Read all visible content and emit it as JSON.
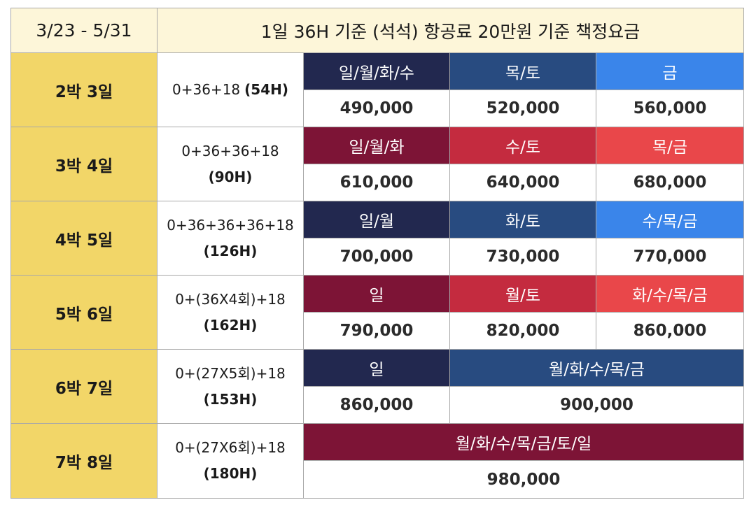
{
  "header": {
    "period": "3/23 - 5/31",
    "title": "1일 36H 기준 (석석) 항공료 20만원 기준 책정요금"
  },
  "rows": [
    {
      "stay": "2박 3일",
      "hours_line1": "0+36+18",
      "hours_line2": "(54H)",
      "days": [
        "일/월/화/수",
        "목/토",
        "금"
      ],
      "prices": [
        "490,000",
        "520,000",
        "560,000"
      ]
    },
    {
      "stay": "3박 4일",
      "hours_line1": "0+36+36+18",
      "hours_line2": "(90H)",
      "days": [
        "일/월/화",
        "수/토",
        "목/금"
      ],
      "prices": [
        "610,000",
        "640,000",
        "680,000"
      ]
    },
    {
      "stay": "4박 5일",
      "hours_line1": "0+36+36+36+18",
      "hours_line2": "(126H)",
      "days": [
        "일/월",
        "화/토",
        "수/목/금"
      ],
      "prices": [
        "700,000",
        "730,000",
        "770,000"
      ]
    },
    {
      "stay": "5박 6일",
      "hours_line1": "0+(36X4회)+18",
      "hours_line2": "(162H)",
      "days": [
        "일",
        "월/토",
        "화/수/목/금"
      ],
      "prices": [
        "790,000",
        "820,000",
        "860,000"
      ]
    },
    {
      "stay": "6박 7일",
      "hours_line1": "0+(27X5회)+18",
      "hours_line2": "(153H)",
      "days": [
        "일",
        "월/화/수/목/금"
      ],
      "prices": [
        "860,000",
        "900,000"
      ]
    },
    {
      "stay": "7박 8일",
      "hours_line1": "0+(27X6회)+18",
      "hours_line2": "(180H)",
      "days": [
        "월/화/수/목/금/토/일"
      ],
      "prices": [
        "980,000"
      ]
    }
  ],
  "colors": {
    "header_bg": "#fdf6d9",
    "stay_bg": "#f2d668",
    "navy": "#22284f",
    "blue": "#284b80",
    "bright_blue": "#3a85ea",
    "maroon": "#7d1436",
    "crimson": "#c42b3f",
    "red": "#e9474a"
  }
}
